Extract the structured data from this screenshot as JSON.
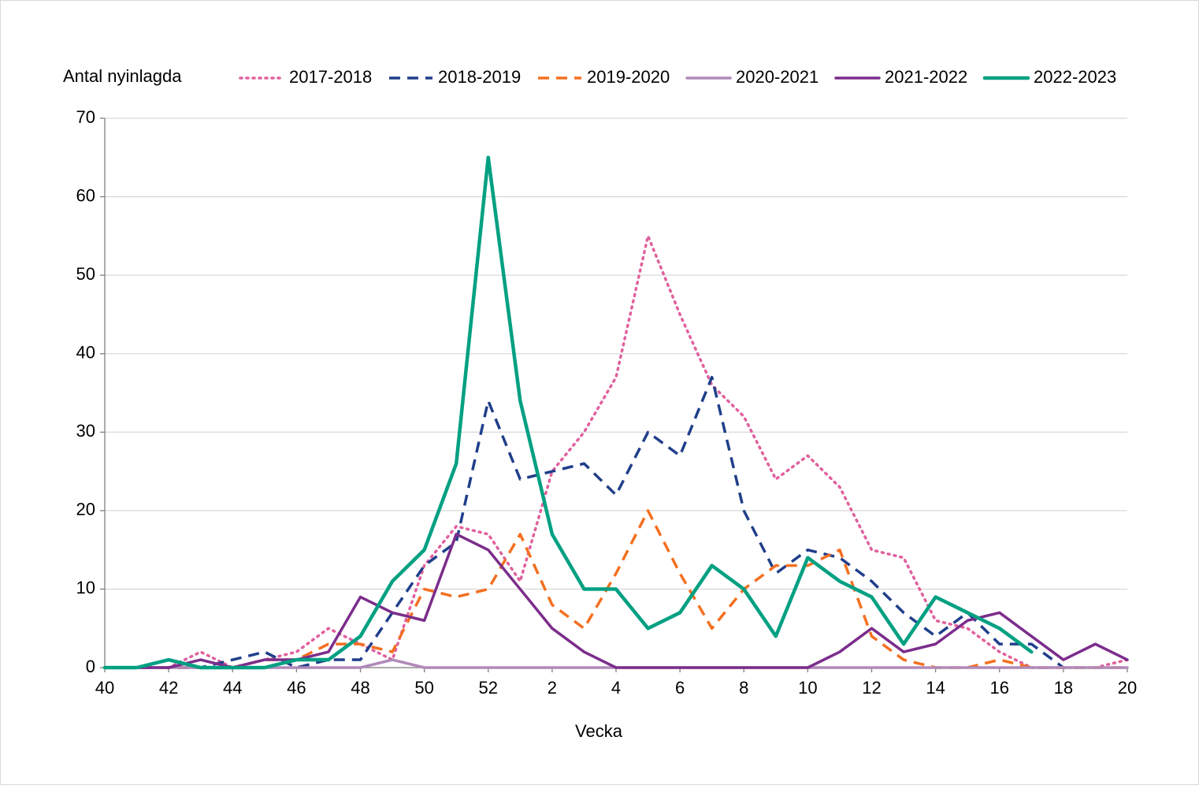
{
  "chart_data": {
    "type": "line",
    "y_label": "Antal nyinlagda",
    "x_label": "Vecka",
    "categories": [
      "40",
      null,
      "42",
      null,
      "44",
      null,
      "46",
      null,
      "48",
      null,
      "50",
      null,
      "52",
      null,
      "2",
      null,
      "4",
      null,
      "6",
      null,
      "8",
      null,
      "10",
      null,
      "12",
      null,
      "14",
      null,
      "16",
      null,
      "18",
      null,
      "20"
    ],
    "ylim": [
      0,
      70
    ],
    "yticks": [
      0,
      10,
      20,
      30,
      40,
      50,
      60,
      70
    ],
    "grid": true,
    "series": [
      {
        "name": "2017-2018",
        "color": "#e0609e",
        "dash": "dotted",
        "values": [
          0,
          0,
          0,
          2,
          0,
          1,
          2,
          5,
          3,
          1,
          13,
          18,
          17,
          11,
          25,
          30,
          37,
          55,
          45,
          36,
          32,
          24,
          27,
          23,
          15,
          14,
          6,
          5,
          2,
          0,
          0,
          0,
          1
        ]
      },
      {
        "name": "2018-2019",
        "color": "#203f8a",
        "dash": "dashed",
        "values": [
          0,
          0,
          0,
          0,
          1,
          2,
          0,
          1,
          1,
          7,
          13,
          16,
          34,
          24,
          25,
          26,
          22,
          30,
          27,
          37,
          20,
          12,
          15,
          14,
          11,
          7,
          4,
          7,
          3,
          3,
          0,
          null,
          null
        ]
      },
      {
        "name": "2019-2020",
        "color": "#f37021",
        "dash": "dashed",
        "values": [
          0,
          0,
          0,
          0,
          0,
          1,
          1,
          3,
          3,
          2,
          10,
          9,
          10,
          17,
          8,
          5,
          12,
          20,
          12,
          5,
          10,
          13,
          13,
          15,
          4,
          1,
          0,
          0,
          1,
          0,
          0,
          0,
          0
        ]
      },
      {
        "name": "2020-2021",
        "color": "#b08ab8",
        "dash": "solid",
        "values": [
          0,
          0,
          0,
          0,
          0,
          0,
          0,
          0,
          0,
          1,
          0,
          0,
          0,
          0,
          0,
          0,
          0,
          0,
          0,
          0,
          0,
          0,
          0,
          0,
          0,
          0,
          0,
          0,
          0,
          0,
          0,
          0,
          0
        ]
      },
      {
        "name": "2021-2022",
        "color": "#7b2d8b",
        "dash": "solid",
        "values": [
          0,
          0,
          0,
          1,
          0,
          1,
          1,
          2,
          9,
          7,
          6,
          17,
          15,
          10,
          5,
          2,
          0,
          0,
          0,
          0,
          0,
          0,
          0,
          2,
          5,
          2,
          3,
          6,
          7,
          4,
          1,
          3,
          1
        ]
      },
      {
        "name": "2022-2023",
        "color": "#00a082",
        "dash": "solid",
        "values": [
          0,
          0,
          1,
          0,
          0,
          0,
          1,
          1,
          4,
          11,
          15,
          26,
          65,
          34,
          17,
          10,
          10,
          5,
          7,
          13,
          10,
          4,
          14,
          11,
          9,
          3,
          9,
          7,
          5,
          2,
          null,
          null,
          null
        ]
      }
    ]
  }
}
